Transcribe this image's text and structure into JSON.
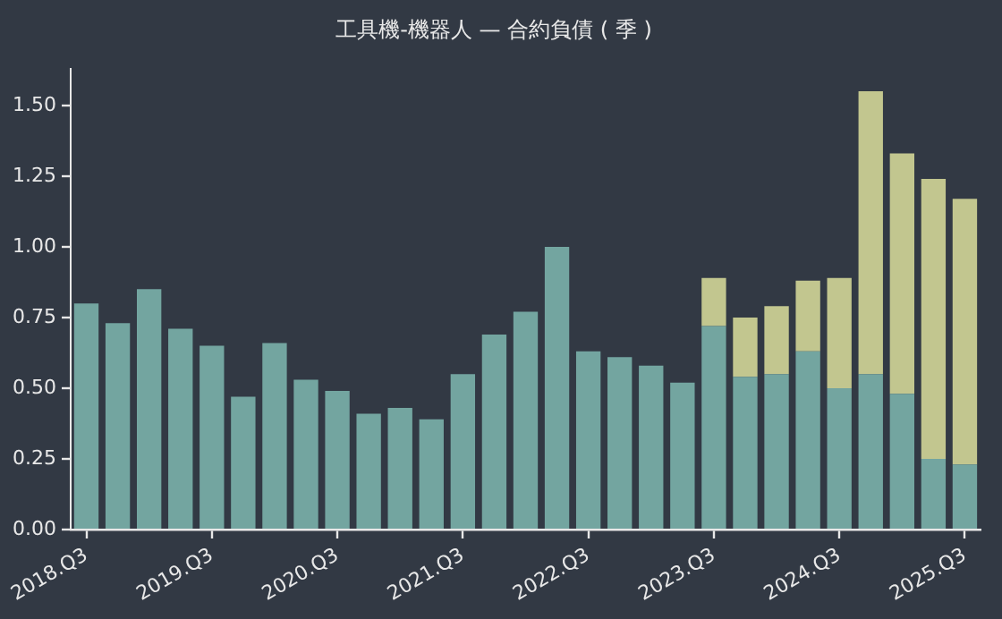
{
  "chart_data": {
    "type": "bar",
    "title": "工具機-機器人 — 合約負債 ( 季 )",
    "stacked": true,
    "categories": [
      "2018.Q3",
      null,
      null,
      null,
      "2019.Q3",
      null,
      null,
      null,
      "2020.Q3",
      null,
      null,
      null,
      "2021.Q3",
      null,
      null,
      null,
      "2022.Q3",
      null,
      null,
      null,
      "2023.Q3",
      null,
      null,
      null,
      "2024.Q3",
      null,
      null,
      null,
      "2025.Q3"
    ],
    "series": [
      {
        "color": "#73a5a0",
        "values": [
          0.8,
          0.73,
          0.85,
          0.71,
          0.65,
          0.47,
          0.66,
          0.53,
          0.49,
          0.41,
          0.43,
          0.39,
          0.55,
          0.69,
          0.77,
          1.0,
          0.63,
          0.61,
          0.58,
          0.52,
          0.72,
          0.54,
          0.55,
          0.63,
          0.5,
          0.55,
          0.48,
          0.25,
          0.23
        ]
      },
      {
        "color": "#c2c68f",
        "values": [
          null,
          null,
          null,
          null,
          null,
          null,
          null,
          null,
          null,
          null,
          null,
          null,
          null,
          null,
          null,
          null,
          null,
          null,
          null,
          null,
          0.17,
          0.21,
          0.24,
          0.25,
          0.39,
          1.0,
          0.85,
          0.99,
          0.94
        ]
      }
    ],
    "ylim": [
      0,
      1.63
    ],
    "yticks": [
      {
        "value": 0,
        "label": "0.00"
      },
      {
        "value": 0.25,
        "label": "0.25"
      },
      {
        "value": 0.5,
        "label": "0.50"
      },
      {
        "value": 0.75,
        "label": "0.75"
      },
      {
        "value": 1,
        "label": "1.00"
      },
      {
        "value": 1.25,
        "label": "1.25"
      },
      {
        "value": 1.5,
        "label": "1.50"
      }
    ],
    "grid": false,
    "legend": false
  }
}
